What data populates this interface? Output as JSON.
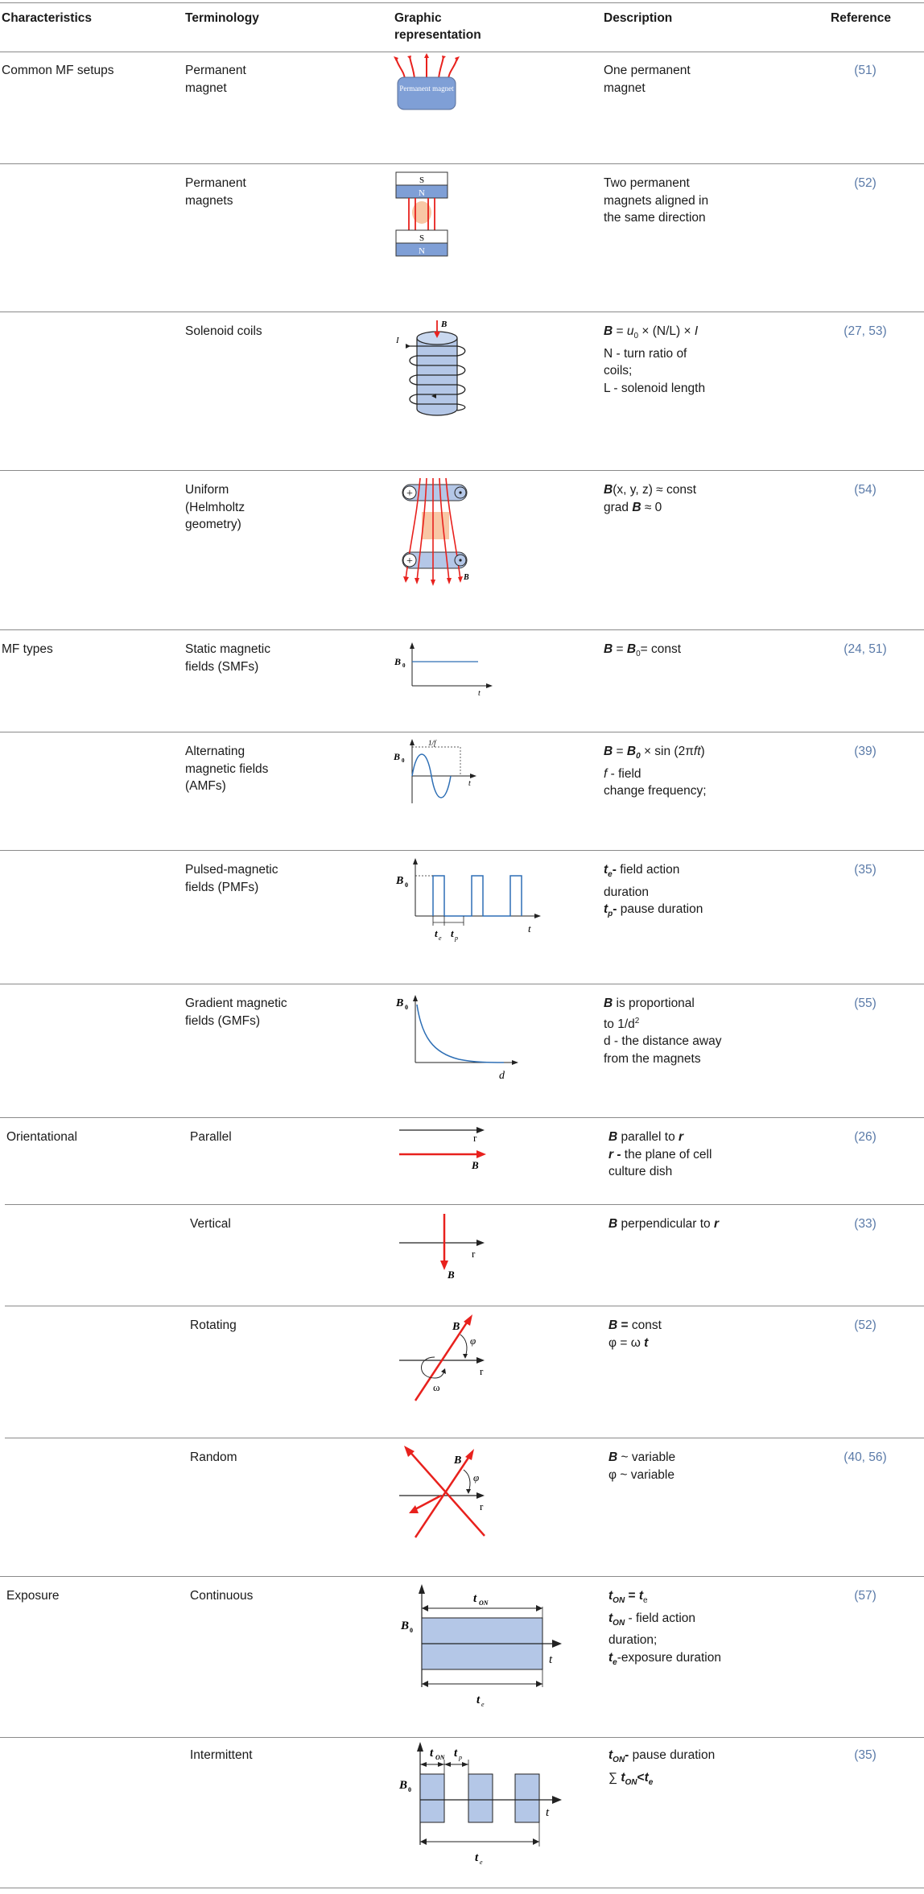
{
  "headers": [
    "Characteristics",
    "Terminology",
    "Graphic representation",
    "Description",
    "Reference"
  ],
  "rows": [
    {
      "char": "Common MF setups",
      "term": "Permanent magnet",
      "desc": "One permanent magnet",
      "ref": "(51)"
    },
    {
      "char": "",
      "term": "Permanent magnets",
      "desc": "Two permanent magnets aligned in the same direction",
      "ref": "(52)"
    },
    {
      "char": "",
      "term": "Solenoid coils",
      "desc_lines": [
        "B = u0 × (N/L) × I",
        "N - turn ratio of coils;",
        "L - solenoid length"
      ],
      "ref": "(27, 53)"
    },
    {
      "char": "",
      "term": "Uniform (Helmholtz geometry)",
      "desc_lines": [
        "B(x, y, z) ≈ const",
        "grad B ≈ 0"
      ],
      "ref": "(54)"
    },
    {
      "char": "MF types",
      "term": "Static magnetic fields (SMFs)",
      "desc_lines": [
        "B = B0= const"
      ],
      "ref": "(24, 51)"
    },
    {
      "char": "",
      "term": "Alternating magnetic fields (AMFs)",
      "desc_lines": [
        "B = B0 × sin (2πft)",
        "f - field change frequency;"
      ],
      "ref": "(39)"
    },
    {
      "char": "",
      "term": "Pulsed-magnetic fields (PMFs)",
      "desc_lines": [
        "te- field action duration",
        "tp- pause duration"
      ],
      "ref": "(35)"
    },
    {
      "char": "",
      "term": "Gradient magnetic fields (GMFs)",
      "desc_lines": [
        "B is proportional to 1/d2",
        "d - the distance away from the magnets"
      ],
      "ref": "(55)"
    },
    {
      "char": "Orientational",
      "term": "Parallel",
      "desc_lines": [
        "B parallel to r",
        "r - the plane of cell culture dish"
      ],
      "ref": "(26)"
    },
    {
      "char": "",
      "term": "Vertical",
      "desc_lines": [
        "B perpendicular to r"
      ],
      "ref": "(33)"
    },
    {
      "char": "",
      "term": "Rotating",
      "desc_lines": [
        "B = const",
        "φ = ω t"
      ],
      "ref": "(52)"
    },
    {
      "char": "",
      "term": "Random",
      "desc_lines": [
        "B ~ variable",
        "φ ~ variable"
      ],
      "ref": "(40, 56)"
    },
    {
      "char": "Exposure",
      "term": "Continuous",
      "desc_lines": [
        "tON = te",
        "tON - field action duration;",
        "te-exposure duration"
      ],
      "ref": "(57)"
    },
    {
      "char": "",
      "term": "Intermittent",
      "desc_lines": [
        "tON- pause duration",
        "∑ tON<te"
      ],
      "ref": "(35)"
    }
  ],
  "graphic_labels": {
    "permanent_magnet": "Permanent magnet",
    "south": "S",
    "north": "N",
    "B": "B",
    "I": "I",
    "B0": "B",
    "zero": "0",
    "t": "t",
    "d": "d",
    "r": "r",
    "one_over_f": "1/f",
    "e": "e",
    "p": "p",
    "ON": "ON",
    "phi": "φ",
    "omega": "ω"
  },
  "colors": {
    "red": "#e8211d",
    "blue_fill": "#b4c7e7",
    "blue_line": "#2e6fb5",
    "magnet_fill": "#7f9fd6"
  }
}
